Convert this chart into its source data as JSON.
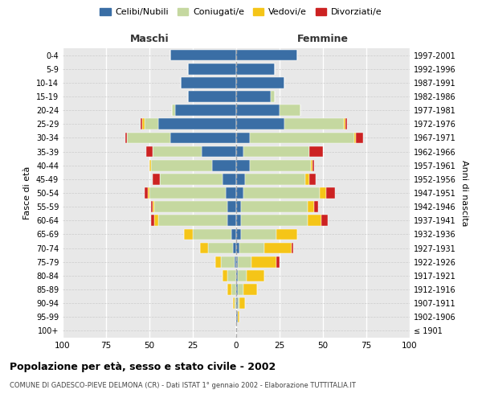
{
  "age_groups": [
    "100+",
    "95-99",
    "90-94",
    "85-89",
    "80-84",
    "75-79",
    "70-74",
    "65-69",
    "60-64",
    "55-59",
    "50-54",
    "45-49",
    "40-44",
    "35-39",
    "30-34",
    "25-29",
    "20-24",
    "15-19",
    "10-14",
    "5-9",
    "0-4"
  ],
  "birth_years": [
    "≤ 1901",
    "1902-1906",
    "1907-1911",
    "1912-1916",
    "1917-1921",
    "1922-1926",
    "1927-1931",
    "1932-1936",
    "1937-1941",
    "1942-1946",
    "1947-1951",
    "1952-1956",
    "1957-1961",
    "1962-1966",
    "1967-1971",
    "1972-1976",
    "1977-1981",
    "1982-1986",
    "1987-1991",
    "1992-1996",
    "1997-2001"
  ],
  "male_celibi": [
    0,
    0,
    0,
    0,
    0,
    1,
    2,
    3,
    5,
    5,
    6,
    8,
    14,
    20,
    38,
    45,
    35,
    28,
    32,
    28,
    38
  ],
  "male_coniugati": [
    0,
    0,
    1,
    3,
    5,
    8,
    14,
    22,
    40,
    42,
    44,
    36,
    35,
    28,
    25,
    8,
    2,
    0,
    0,
    0,
    0
  ],
  "male_vedovi": [
    0,
    0,
    1,
    2,
    3,
    3,
    5,
    5,
    2,
    1,
    1,
    0,
    1,
    0,
    0,
    1,
    0,
    0,
    0,
    0,
    0
  ],
  "male_divorziati": [
    0,
    0,
    0,
    0,
    0,
    0,
    0,
    0,
    2,
    1,
    2,
    4,
    0,
    4,
    1,
    1,
    0,
    0,
    0,
    0,
    0
  ],
  "female_nubili": [
    0,
    1,
    1,
    1,
    1,
    1,
    2,
    3,
    3,
    3,
    4,
    5,
    8,
    4,
    8,
    28,
    25,
    20,
    28,
    22,
    35
  ],
  "female_coniugate": [
    0,
    0,
    1,
    3,
    5,
    8,
    14,
    20,
    38,
    38,
    44,
    35,
    35,
    38,
    60,
    34,
    12,
    2,
    0,
    0,
    0
  ],
  "female_vedove": [
    0,
    1,
    3,
    8,
    10,
    14,
    16,
    12,
    8,
    4,
    4,
    2,
    1,
    0,
    1,
    1,
    0,
    0,
    0,
    0,
    0
  ],
  "female_divorziate": [
    0,
    0,
    0,
    0,
    0,
    2,
    1,
    0,
    4,
    2,
    5,
    4,
    1,
    8,
    4,
    1,
    0,
    0,
    0,
    0,
    0
  ],
  "colors": {
    "celibi": "#3a6ea5",
    "coniugati": "#c5d8a0",
    "vedovi": "#f5c518",
    "divorziati": "#cc2222"
  },
  "xlim": 100,
  "title": "Popolazione per età, sesso e stato civile - 2002",
  "subtitle": "COMUNE DI GADESCO-PIEVE DELMONA (CR) - Dati ISTAT 1° gennaio 2002 - Elaborazione TUTTITALIA.IT",
  "ylabel_left": "Fasce di età",
  "ylabel_right": "Anni di nascita",
  "legend_labels": [
    "Celibi/Nubili",
    "Coniugati/e",
    "Vedovi/e",
    "Divorziati/e"
  ]
}
